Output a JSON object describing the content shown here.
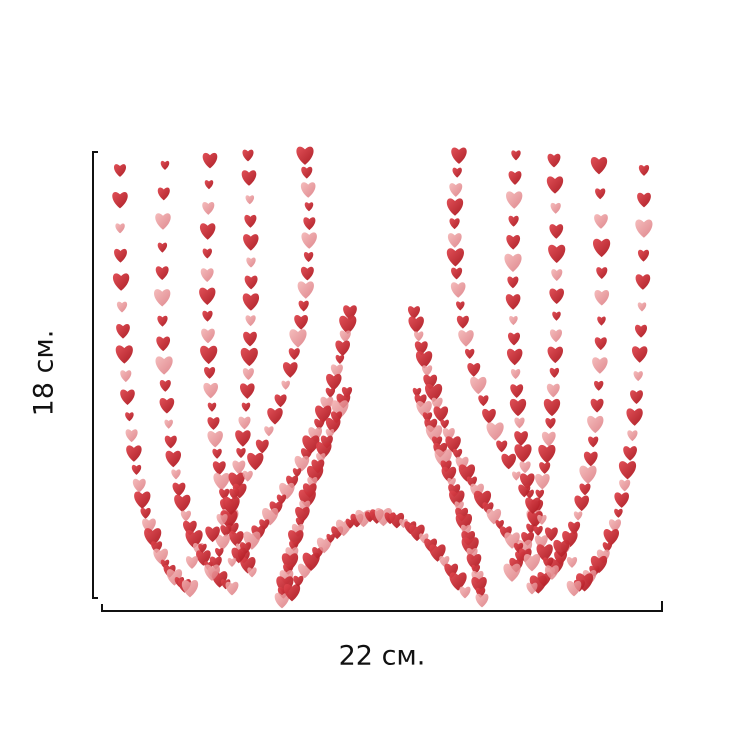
{
  "dimensions": {
    "height_label": "18 см.",
    "width_label": "22 см."
  }
}
